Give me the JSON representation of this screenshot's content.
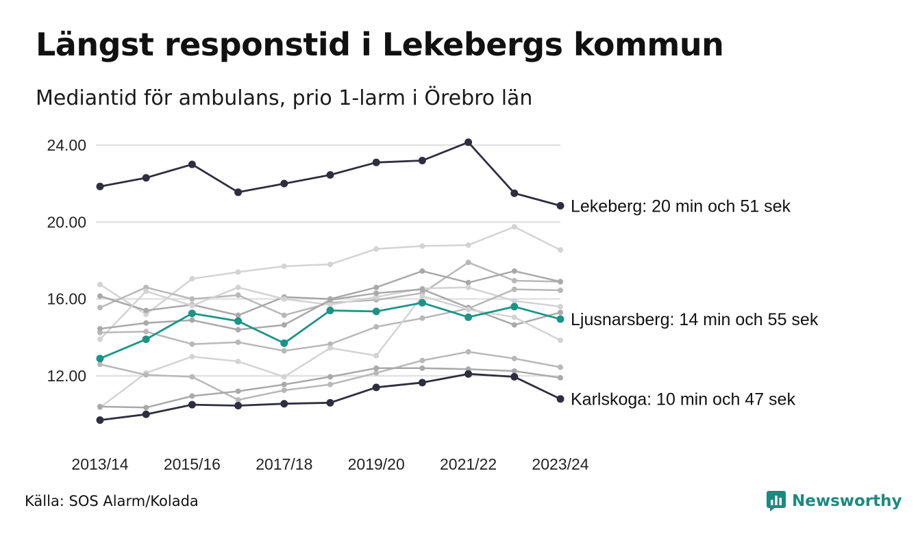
{
  "title": "Längst responstid i Lekebergs kommun",
  "subtitle": "Mediantid för ambulans, prio 1-larm i Örebro län",
  "source": "Källa: SOS Alarm/Kolada",
  "brand": "Newsworthy",
  "colors": {
    "highlight": "#2e2e3e",
    "accent": "#1b9486",
    "background_lines": [
      "#d3d3d3",
      "#b8b8b8",
      "#a9a9a9"
    ],
    "grid": "#e2e2e2",
    "brand": "#1b8a7e"
  },
  "chart_data": {
    "type": "line",
    "x": [
      "2013/14",
      "2014/15",
      "2015/16",
      "2016/17",
      "2017/18",
      "2018/19",
      "2019/20",
      "2020/21",
      "2021/22",
      "2022/23",
      "2023/24"
    ],
    "x_tick_labels": [
      "2013/14",
      "2015/16",
      "2017/18",
      "2019/20",
      "2021/22",
      "2023/24"
    ],
    "y_ticks": [
      "12.00",
      "16.00",
      "20.00",
      "24.00"
    ],
    "ylim": [
      9.7,
      24.4
    ],
    "grid": true,
    "labelled_series": [
      {
        "label": "Lekeberg: 20 min och 51 sek",
        "style": "highlight",
        "values": [
          21.85,
          22.3,
          23.0,
          21.55,
          22.0,
          22.45,
          23.1,
          23.2,
          24.15,
          21.5,
          20.85
        ]
      },
      {
        "label": "Ljusnarsberg: 14 min och 55 sek",
        "style": "accent",
        "values": [
          12.9,
          13.9,
          15.25,
          14.85,
          13.7,
          15.4,
          15.35,
          15.8,
          15.05,
          15.6,
          14.95
        ]
      },
      {
        "label": "Karlskoga: 10 min och 47 sek",
        "style": "highlight",
        "values": [
          9.7,
          10.0,
          10.5,
          10.45,
          10.55,
          10.6,
          11.4,
          11.65,
          12.1,
          11.95,
          10.8
        ]
      }
    ],
    "background_series": [
      {
        "values": [
          16.75,
          15.2,
          17.05,
          17.4,
          17.7,
          17.8,
          18.6,
          18.75,
          18.8,
          19.75,
          18.55
        ]
      },
      {
        "values": [
          15.55,
          16.6,
          16.0,
          16.2,
          15.15,
          15.8,
          15.95,
          16.3,
          17.9,
          16.95,
          16.9
        ]
      },
      {
        "values": [
          16.15,
          15.4,
          15.7,
          15.15,
          16.1,
          16.0,
          16.6,
          17.45,
          16.85,
          17.45,
          16.9
        ]
      },
      {
        "values": [
          13.9,
          16.4,
          15.65,
          16.6,
          16.0,
          15.7,
          16.1,
          16.55,
          16.6,
          15.9,
          15.6
        ]
      },
      {
        "values": [
          14.25,
          14.3,
          13.65,
          13.75,
          13.3,
          13.65,
          14.55,
          15.0,
          15.5,
          16.5,
          16.45
        ]
      },
      {
        "values": [
          14.45,
          14.75,
          14.9,
          14.4,
          14.65,
          15.95,
          16.3,
          16.5,
          15.55,
          14.65,
          15.3
        ]
      },
      {
        "values": [
          10.35,
          12.15,
          13.0,
          12.75,
          11.95,
          13.45,
          13.05,
          16.15,
          15.45,
          15.05,
          13.85
        ]
      },
      {
        "values": [
          12.6,
          12.05,
          11.95,
          10.75,
          11.25,
          11.55,
          12.15,
          12.8,
          13.25,
          12.9,
          12.45
        ]
      },
      {
        "values": [
          10.4,
          10.35,
          10.95,
          11.2,
          11.55,
          11.95,
          12.4,
          12.4,
          12.35,
          12.25,
          11.9
        ]
      }
    ]
  }
}
